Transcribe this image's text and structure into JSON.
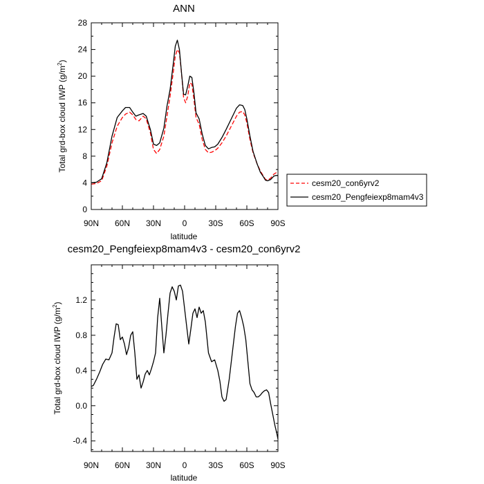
{
  "chart_data": [
    {
      "type": "line",
      "title": "ANN",
      "xlabel": "latitude",
      "ylabel": "Total grd-box cloud IWP (g/m",
      "ylabel_sup": "2",
      "ylabel_close": ")",
      "xlim": [
        90,
        -90
      ],
      "ylim": [
        0,
        28
      ],
      "xticks": [
        90,
        60,
        30,
        0,
        -30,
        -60,
        -90
      ],
      "xtick_labels": [
        "90N",
        "60N",
        "30N",
        "0",
        "30S",
        "60S",
        "90S"
      ],
      "yticks": [
        0,
        4,
        8,
        12,
        16,
        20,
        24,
        28
      ],
      "ytick_labels": [
        "0",
        "4",
        "8",
        "12",
        "16",
        "20",
        "24",
        "28"
      ],
      "legend": {
        "placement": "outside-right"
      },
      "series": [
        {
          "name": "cesm20_con6yrv2",
          "color": "#ff0000",
          "dashed": true,
          "x": [
            90,
            85,
            80,
            75,
            70,
            65,
            60,
            57,
            53,
            50,
            47,
            44,
            40,
            37,
            33,
            30,
            27,
            24,
            20,
            17,
            14,
            11,
            9,
            7,
            5,
            3,
            1,
            -1,
            -3,
            -5,
            -7,
            -9,
            -11,
            -14,
            -17,
            -20,
            -23,
            -26,
            -29,
            -32,
            -36,
            -40,
            -45,
            -50,
            -53,
            -56,
            -58,
            -60,
            -63,
            -66,
            -70,
            -73,
            -76,
            -78,
            -80,
            -83,
            -86,
            -88,
            -90
          ],
          "y": [
            3.8,
            3.9,
            4.3,
            6.5,
            10.0,
            12.5,
            13.8,
            14.3,
            14.6,
            14.2,
            13.5,
            13.3,
            14.0,
            13.6,
            11.5,
            9.0,
            8.4,
            9.0,
            11.0,
            14.0,
            17.0,
            20.5,
            23.0,
            24.0,
            23.5,
            20.5,
            16.8,
            16.0,
            17.0,
            19.0,
            18.8,
            16.5,
            13.8,
            12.8,
            10.5,
            9.0,
            8.5,
            8.6,
            8.8,
            9.2,
            10.0,
            11.0,
            12.5,
            14.0,
            14.6,
            14.7,
            14.2,
            13.0,
            10.5,
            8.5,
            6.8,
            5.8,
            5.0,
            4.5,
            4.4,
            4.7,
            5.3,
            5.5,
            5.6
          ]
        },
        {
          "name": "cesm20_Pengfeiexp8mam4v3",
          "color": "#000000",
          "dashed": false,
          "x": [
            90,
            85,
            80,
            75,
            70,
            65,
            60,
            57,
            53,
            50,
            47,
            44,
            40,
            37,
            33,
            30,
            27,
            24,
            20,
            17,
            14,
            11,
            9,
            7,
            5,
            3,
            1,
            -1,
            -3,
            -5,
            -7,
            -9,
            -11,
            -14,
            -17,
            -20,
            -23,
            -26,
            -29,
            -32,
            -36,
            -40,
            -45,
            -50,
            -53,
            -56,
            -58,
            -60,
            -63,
            -66,
            -70,
            -73,
            -76,
            -78,
            -80,
            -83,
            -86,
            -88,
            -90
          ],
          "y": [
            4.0,
            4.1,
            4.6,
            7.0,
            11.0,
            13.8,
            14.8,
            15.3,
            15.3,
            14.6,
            14.0,
            14.2,
            14.4,
            14.0,
            12.0,
            9.8,
            9.6,
            10.0,
            12.2,
            15.5,
            18.0,
            21.8,
            24.5,
            25.4,
            24.0,
            20.5,
            17.3,
            17.2,
            18.5,
            20.0,
            19.8,
            17.5,
            14.5,
            13.6,
            11.3,
            9.6,
            9.1,
            9.3,
            9.4,
            9.8,
            10.8,
            12.0,
            13.6,
            15.2,
            15.7,
            15.6,
            15.0,
            13.6,
            11.0,
            8.7,
            6.8,
            5.6,
            4.9,
            4.4,
            4.3,
            4.5,
            5.0,
            5.1,
            5.1
          ]
        }
      ]
    },
    {
      "type": "line",
      "title": "cesm20_Pengfeiexp8mam4v3 - cesm20_con6yrv2",
      "xlabel": "latitude",
      "ylabel": "Total grd-box cloud IWP (g/m",
      "ylabel_sup": "2",
      "ylabel_close": ")",
      "xlim": [
        90,
        -90
      ],
      "ylim": [
        -0.52,
        1.6
      ],
      "xticks": [
        90,
        60,
        30,
        0,
        -30,
        -60,
        -90
      ],
      "xtick_labels": [
        "90N",
        "60N",
        "30N",
        "0",
        "30S",
        "60S",
        "90S"
      ],
      "yticks": [
        -0.4,
        0.0,
        0.4,
        0.8,
        1.2
      ],
      "ytick_labels": [
        "-0.4",
        "0.0",
        "0.4",
        "0.8",
        "1.2"
      ],
      "series": [
        {
          "color": "#000000",
          "dashed": false,
          "x": [
            90,
            88,
            85,
            82,
            79,
            76,
            73,
            70,
            68,
            66,
            64,
            62,
            60,
            58,
            56,
            54,
            52,
            50,
            48,
            46,
            44,
            42,
            40,
            38,
            36,
            34,
            32,
            30,
            28,
            26,
            24,
            22,
            20,
            18,
            16,
            14,
            12,
            10,
            8,
            6,
            4,
            2,
            0,
            -2,
            -4,
            -6,
            -8,
            -10,
            -12,
            -14,
            -16,
            -18,
            -20,
            -23,
            -26,
            -29,
            -32,
            -34,
            -36,
            -38,
            -40,
            -43,
            -46,
            -49,
            -51,
            -53,
            -55,
            -57,
            -59,
            -61,
            -63,
            -65,
            -67,
            -69,
            -71,
            -73,
            -75,
            -77,
            -79,
            -81,
            -83,
            -85,
            -87,
            -89,
            -90
          ],
          "y": [
            0.22,
            0.23,
            0.3,
            0.38,
            0.47,
            0.53,
            0.52,
            0.6,
            0.78,
            0.93,
            0.92,
            0.75,
            0.78,
            0.7,
            0.58,
            0.66,
            0.8,
            0.84,
            0.6,
            0.3,
            0.35,
            0.2,
            0.27,
            0.36,
            0.4,
            0.35,
            0.42,
            0.5,
            0.6,
            1.0,
            1.22,
            0.9,
            0.6,
            0.8,
            1.05,
            1.28,
            1.35,
            1.3,
            1.2,
            1.36,
            1.37,
            1.3,
            1.1,
            0.9,
            0.7,
            0.87,
            1.05,
            1.1,
            1.0,
            1.12,
            1.05,
            1.08,
            0.95,
            0.6,
            0.5,
            0.52,
            0.4,
            0.28,
            0.1,
            0.05,
            0.07,
            0.3,
            0.6,
            0.9,
            1.05,
            1.08,
            1.0,
            0.9,
            0.75,
            0.5,
            0.25,
            0.18,
            0.15,
            0.1,
            0.1,
            0.12,
            0.15,
            0.17,
            0.18,
            0.15,
            0.02,
            -0.1,
            -0.22,
            -0.32,
            -0.38
          ]
        }
      ]
    }
  ]
}
